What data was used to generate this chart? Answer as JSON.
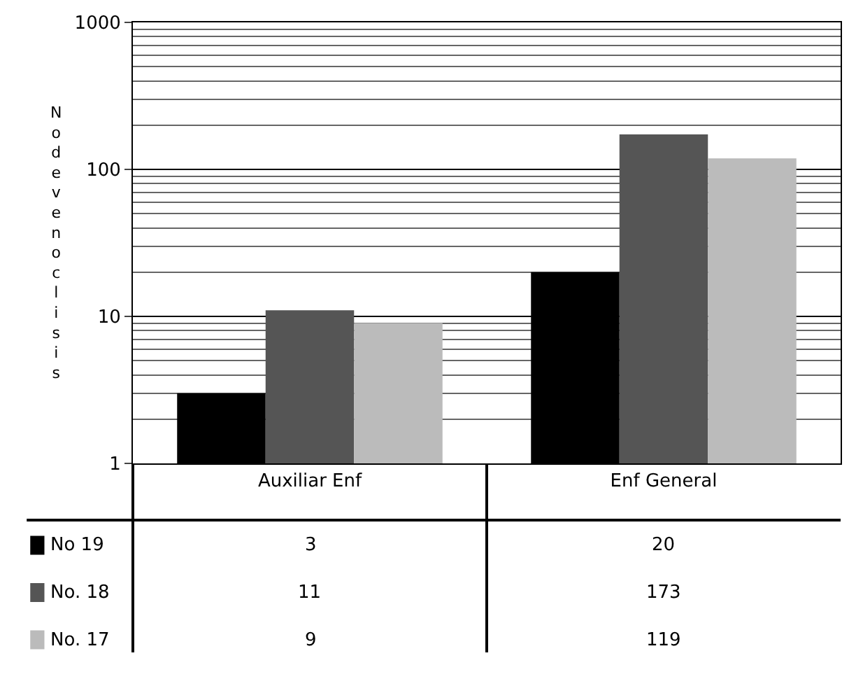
{
  "chart_data": {
    "type": "bar",
    "ylabel": "No de venoclisis",
    "categories": [
      "Auxiliar Enf",
      "Enf General"
    ],
    "series": [
      {
        "name": "No 19",
        "color": "#000000",
        "values": [
          3,
          20
        ]
      },
      {
        "name": "No. 18",
        "color": "#555555",
        "values": [
          11,
          173
        ]
      },
      {
        "name": "No. 17",
        "color": "#bbbbbb",
        "values": [
          9,
          119
        ]
      }
    ],
    "log": true,
    "ylim": [
      1,
      1000
    ],
    "yticks": [
      1,
      10,
      100,
      1000
    ],
    "grid": "y",
    "legend": "bottom left",
    "data_labels": true
  }
}
